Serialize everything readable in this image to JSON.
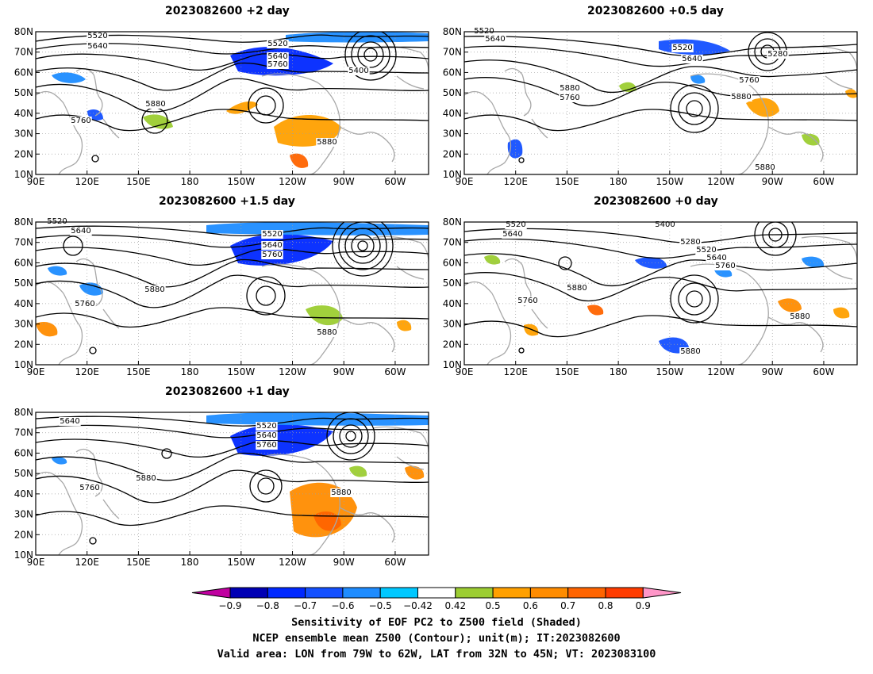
{
  "colors": {
    "contour": "#000000",
    "coast": "#a8a8a8",
    "grid": "#a0a0a0",
    "neg": [
      "#c000a0",
      "#0000b4",
      "#0028ff",
      "#1450ff",
      "#1e8cff",
      "#00c8ff"
    ],
    "mid": "#ffffff",
    "pos": [
      "#9ccd32",
      "#ffa000",
      "#ff8c00",
      "#ff6400",
      "#ff3c00",
      "#ff0000",
      "#ff96c8"
    ]
  },
  "axes": {
    "lat_ticks": [
      "80N",
      "70N",
      "60N",
      "50N",
      "40N",
      "30N",
      "20N",
      "10N"
    ],
    "lon_ticks": [
      "90E",
      "120E",
      "150E",
      "180",
      "150W",
      "120W",
      "90W",
      "60W"
    ]
  },
  "panels": [
    {
      "id": "p2",
      "title": "2023082600 +2 day",
      "contour_labels": [
        "5520",
        "5640",
        "5520",
        "5640",
        "5760",
        "5400",
        "5880",
        "5760",
        "5880"
      ]
    },
    {
      "id": "p05",
      "title": "2023082600 +0.5 day",
      "contour_labels": [
        "5520",
        "5640",
        "5520",
        "5640",
        "5280",
        "5760",
        "5880",
        "5760",
        "5880",
        "5880"
      ]
    },
    {
      "id": "p15",
      "title": "2023082600 +1.5 day",
      "contour_labels": [
        "5520",
        "5640",
        "5520",
        "5640",
        "5760",
        "5760",
        "5880",
        "5880"
      ]
    },
    {
      "id": "p0",
      "title": "2023082600 +0 day",
      "contour_labels": [
        "5520",
        "5640",
        "5400",
        "5280",
        "5520",
        "5640",
        "5760",
        "5760",
        "5880",
        "5880",
        "5880"
      ]
    },
    {
      "id": "p1",
      "title": "2023082600 +1 day",
      "contour_labels": [
        "5640",
        "5520",
        "5640",
        "5760",
        "5880",
        "5760",
        "5880"
      ]
    }
  ],
  "colorbar": {
    "labels": [
      "−0.9",
      "−0.8",
      "−0.7",
      "−0.6",
      "−0.5",
      "−0.42",
      "0.42",
      "0.5",
      "0.6",
      "0.7",
      "0.8",
      "0.9"
    ]
  },
  "caption": {
    "line1": "Sensitivity of EOF PC2 to Z500 field (Shaded)",
    "line2": "NCEP ensemble mean Z500 (Contour); unit(m); IT:2023082600",
    "line3": "Valid area: LON from 79W to 62W, LAT from 32N to 45N; VT: 2023083100"
  }
}
